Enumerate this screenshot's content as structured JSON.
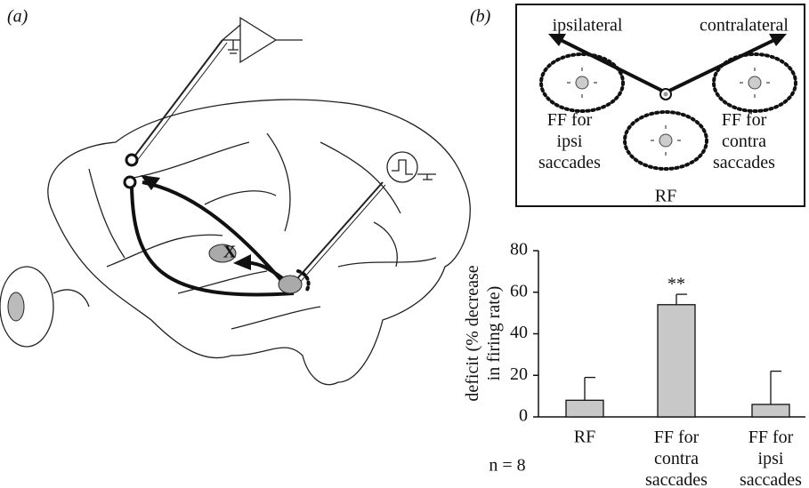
{
  "panel_a": {
    "label": "(a)",
    "lesion_label": "X"
  },
  "panel_b": {
    "label": "(b)",
    "diagram": {
      "left_arrow": "ipsilateral",
      "right_arrow": "contralateral",
      "left_field": "FF for\nipsi\nsaccades",
      "center_field": "RF",
      "right_field": "FF for\ncontra\nsaccades"
    }
  },
  "chart_data": {
    "type": "bar",
    "y_label": "deficit (% decrease\nin firing rate)",
    "categories": [
      "RF",
      "FF for\ncontra\nsaccades",
      "FF for\nipsi\nsaccades"
    ],
    "values": [
      8,
      54,
      6
    ],
    "errors": [
      11,
      5,
      16
    ],
    "color": "#c8c8c8",
    "ylim": [
      0,
      80
    ],
    "yticks": [
      0,
      20,
      40,
      60,
      80
    ],
    "annotation": "**",
    "note": "n = 8"
  }
}
